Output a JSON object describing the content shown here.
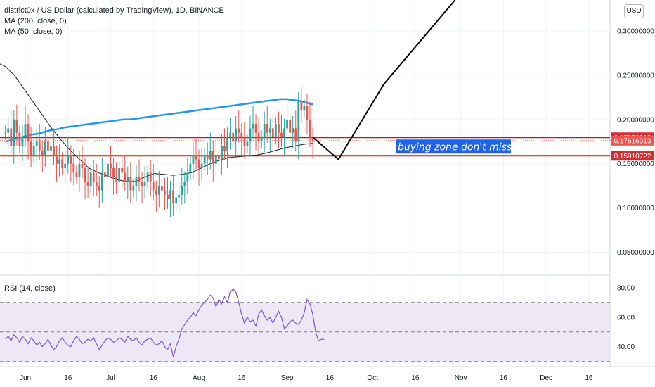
{
  "header": {
    "title": "district0x / US Dollar (calculated by TradingView), 1D, BINANCE",
    "indicators": [
      "MA (200, close, 0)",
      "MA (50, close, 0)"
    ],
    "currency": "USD"
  },
  "colors": {
    "up": "#26a69a",
    "down": "#ef5350",
    "ma200": "#2196f3",
    "ma50": "#131722",
    "zone_line": "#b71c1c",
    "tag_bg": "#d32f2f",
    "note_bg": "#1e63e9",
    "rsi_line": "#7e57c2",
    "rsi_band": "#ede7f6"
  },
  "chart_data": [
    {
      "type": "candlestick",
      "title": "district0x / US Dollar (calculated by TradingView), 1D, BINANCE",
      "x_ticks": [
        "Jun",
        "16",
        "Jul",
        "16",
        "Aug",
        "16",
        "Sep",
        "16",
        "Oct",
        "16",
        "Nov",
        "16",
        "Dec",
        "16"
      ],
      "y_ticks": [
        "0.30000000",
        "0.25000000",
        "0.20000000",
        "0.15000000",
        "0.10000000",
        "0.05000000"
      ],
      "ylim": [
        0.025,
        0.335
      ],
      "price_tags": [
        "0.17979918",
        "0.17616913",
        "0.15910722"
      ],
      "zone_levels": [
        0.17979918,
        0.15910722
      ],
      "annotation": "buying zone don't miss",
      "start_date": "2021-05-25",
      "closes": [
        0.185,
        0.19,
        0.17,
        0.2,
        0.185,
        0.17,
        0.18,
        0.195,
        0.175,
        0.16,
        0.17,
        0.175,
        0.165,
        0.16,
        0.175,
        0.165,
        0.17,
        0.16,
        0.15,
        0.155,
        0.145,
        0.15,
        0.16,
        0.15,
        0.14,
        0.135,
        0.15,
        0.145,
        0.13,
        0.125,
        0.14,
        0.13,
        0.125,
        0.12,
        0.14,
        0.135,
        0.15,
        0.145,
        0.135,
        0.13,
        0.145,
        0.14,
        0.13,
        0.135,
        0.12,
        0.125,
        0.135,
        0.13,
        0.125,
        0.13,
        0.14,
        0.13,
        0.12,
        0.115,
        0.125,
        0.12,
        0.115,
        0.11,
        0.12,
        0.105,
        0.112,
        0.115,
        0.125,
        0.13,
        0.14,
        0.15,
        0.16,
        0.155,
        0.145,
        0.15,
        0.16,
        0.155,
        0.165,
        0.15,
        0.16,
        0.155,
        0.17,
        0.165,
        0.18,
        0.185,
        0.175,
        0.19,
        0.185,
        0.18,
        0.17,
        0.175,
        0.19,
        0.195,
        0.185,
        0.175,
        0.18,
        0.195,
        0.185,
        0.19,
        0.18,
        0.195,
        0.185,
        0.18,
        0.19,
        0.2,
        0.185,
        0.19,
        0.175,
        0.22,
        0.21,
        0.215,
        0.2,
        0.18,
        0.176
      ],
      "ma200": [
        0.175,
        0.177,
        0.179,
        0.181,
        0.183,
        0.184,
        0.186,
        0.188,
        0.189,
        0.191,
        0.192,
        0.193,
        0.194,
        0.195,
        0.196,
        0.197,
        0.198,
        0.199,
        0.2,
        0.2,
        0.201,
        0.202,
        0.203,
        0.204,
        0.205,
        0.206,
        0.207,
        0.208,
        0.209,
        0.21,
        0.211,
        0.212,
        0.213,
        0.214,
        0.215,
        0.216,
        0.217,
        0.218,
        0.219,
        0.22,
        0.221,
        0.222,
        0.223,
        0.223,
        0.222,
        0.221,
        0.219,
        0.217
      ],
      "ma50": [
        0.265,
        0.26,
        0.25,
        0.235,
        0.22,
        0.205,
        0.19,
        0.177,
        0.165,
        0.155,
        0.145,
        0.14,
        0.136,
        0.132,
        0.13,
        0.13,
        0.135,
        0.139,
        0.138,
        0.137,
        0.138,
        0.14,
        0.145,
        0.15,
        0.154,
        0.157,
        0.158,
        0.159,
        0.16,
        0.162,
        0.165,
        0.168,
        0.17,
        0.172,
        0.173
      ],
      "projection": [
        {
          "date": "2021-09-10",
          "value": 0.18
        },
        {
          "date": "2021-09-19",
          "value": 0.155
        },
        {
          "date": "2021-10-05",
          "value": 0.24
        },
        {
          "date": "2021-10-30",
          "value": 0.335
        }
      ]
    },
    {
      "type": "line",
      "title": "RSI (14, close)",
      "y_ticks": [
        "80.00",
        "60.00",
        "40.00"
      ],
      "ylim": [
        27,
        88
      ],
      "bands": [
        30,
        50,
        70
      ],
      "values": [
        45,
        47,
        44,
        48,
        46,
        43,
        47,
        45,
        42,
        46,
        44,
        41,
        43,
        40,
        42,
        45,
        41,
        38,
        40,
        44,
        46,
        43,
        41,
        40,
        44,
        47,
        45,
        42,
        43,
        45,
        44,
        46,
        42,
        38,
        41,
        44,
        46,
        45,
        43,
        44,
        46,
        45,
        43,
        47,
        45,
        44,
        46,
        43,
        41,
        44,
        45,
        46,
        43,
        41,
        42,
        44,
        40,
        38,
        42,
        33,
        40,
        45,
        52,
        55,
        58,
        60,
        63,
        61,
        65,
        68,
        70,
        72,
        75,
        73,
        67,
        72,
        69,
        74,
        70,
        77,
        79,
        77,
        70,
        62,
        56,
        60,
        57,
        58,
        54,
        62,
        65,
        61,
        58,
        60,
        56,
        60,
        64,
        60,
        52,
        54,
        57,
        58,
        56,
        55,
        58,
        63,
        72,
        69,
        62,
        50,
        44,
        45,
        45
      ]
    }
  ]
}
